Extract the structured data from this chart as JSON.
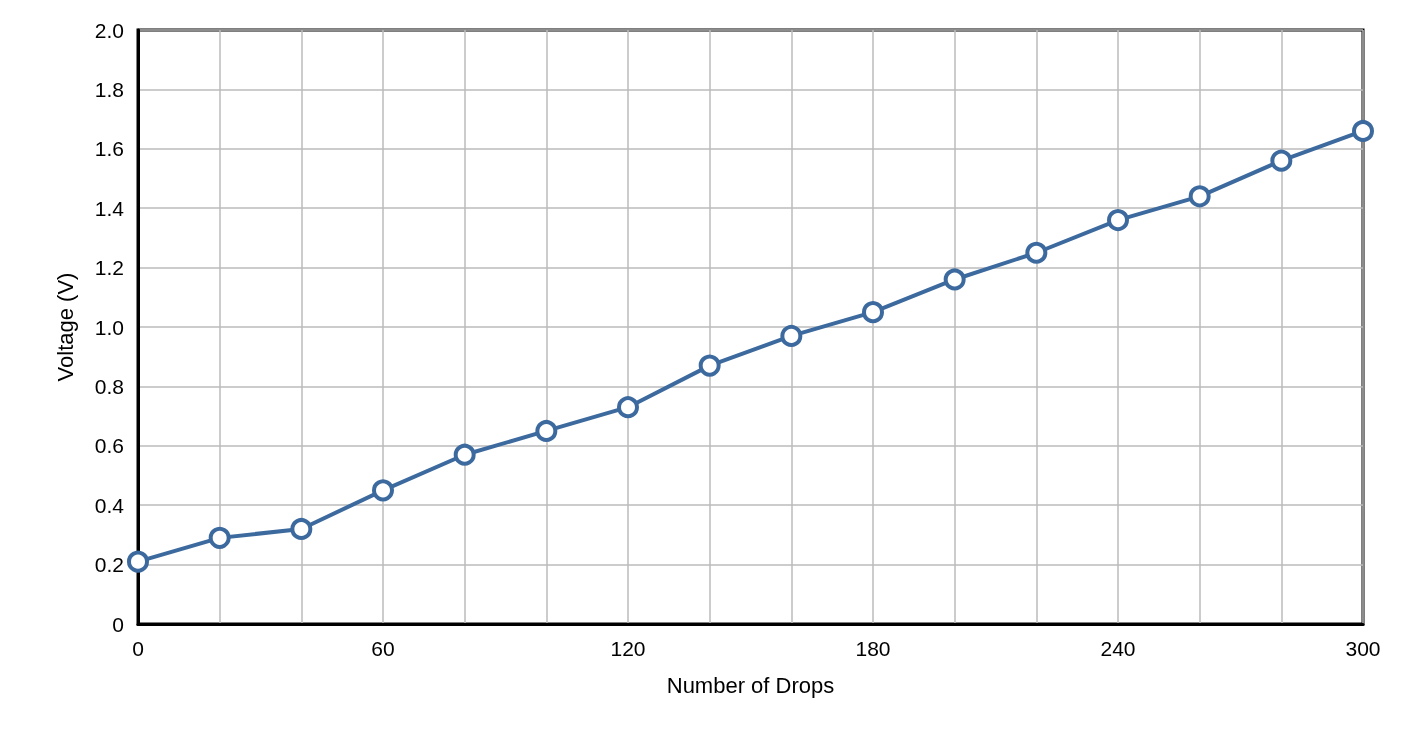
{
  "chart_data": {
    "type": "line",
    "xlabel": "Number of Drops",
    "ylabel": "Voltage (V)",
    "x": [
      0,
      20,
      40,
      60,
      80,
      100,
      120,
      140,
      160,
      180,
      200,
      220,
      240,
      260,
      280,
      300
    ],
    "series": [
      {
        "color": "#3d6a9e",
        "values": [
          0.21,
          0.29,
          0.32,
          0.45,
          0.57,
          0.65,
          0.73,
          0.87,
          0.97,
          1.05,
          1.16,
          1.25,
          1.36,
          1.44,
          1.56,
          1.66
        ]
      }
    ],
    "xlim": [
      0,
      300
    ],
    "xticks": [
      0,
      {
        "value": 20,
        "label": null
      },
      {
        "value": 40,
        "label": null
      },
      60,
      {
        "value": 80,
        "label": null
      },
      {
        "value": 100,
        "label": null
      },
      120,
      {
        "value": 140,
        "label": null
      },
      {
        "value": 160,
        "label": null
      },
      180,
      {
        "value": 200,
        "label": null
      },
      {
        "value": 220,
        "label": null
      },
      240,
      {
        "value": 260,
        "label": null
      },
      {
        "value": 280,
        "label": null
      },
      300
    ],
    "ylim": [
      0,
      2.0
    ],
    "yticks": [
      0,
      0.2,
      0.4,
      0.6,
      0.8,
      {
        "value": 1.0,
        "label": "1.0"
      },
      1.2,
      1.4,
      1.6,
      1.8,
      {
        "value": 2.0,
        "label": "2.0"
      }
    ],
    "grid": true,
    "marker": "circle",
    "line_style": "solid"
  }
}
